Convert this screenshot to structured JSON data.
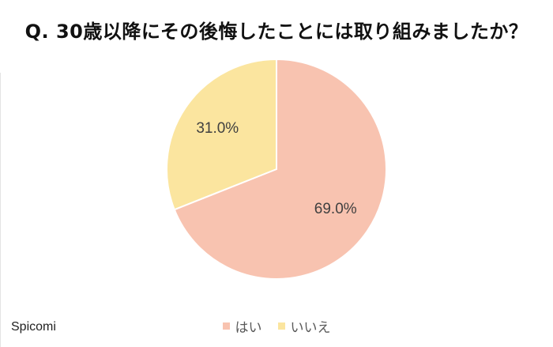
{
  "chart_data": {
    "type": "pie",
    "title": "Q. 30歳以降にその後悔したことには取り組みましたか？",
    "categories": [
      "はい",
      "いいえ"
    ],
    "values": [
      69.0,
      31.0
    ],
    "labels": [
      "69.0%",
      "31.0%"
    ],
    "colors": [
      "#f8c3b0",
      "#fbe59f"
    ],
    "legend_position": "bottom"
  },
  "watermark": "Spicomi"
}
